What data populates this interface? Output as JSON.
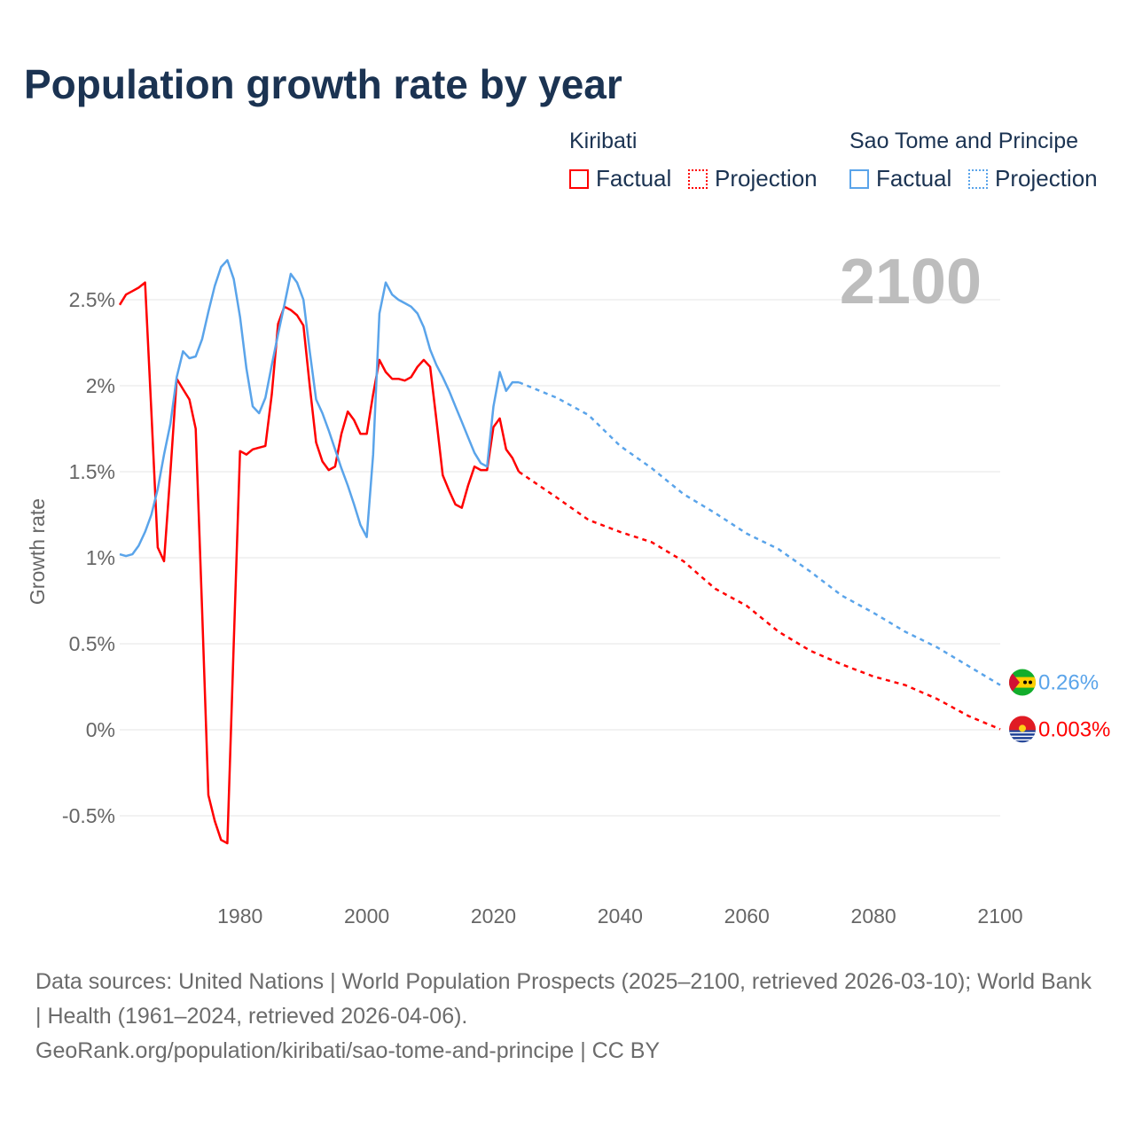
{
  "title": "Population growth rate by year",
  "legend": {
    "groups": [
      {
        "name": "Kiribati",
        "factual": "Factual",
        "projection": "Projection",
        "color": "#ff0000"
      },
      {
        "name": "Sao Tome and Principe",
        "factual": "Factual",
        "projection": "Projection",
        "color": "#5aa4ea"
      }
    ]
  },
  "year_label": "2100",
  "footer": {
    "sources": "Data sources: United Nations | World Population Prospects (2025–2100, retrieved 2026-03-10); World Bank | Health (1961–2024, retrieved 2026-04-06).",
    "link": "GeoRank.org/population/kiribati/sao-tome-and-principe | CC BY"
  },
  "chart_data": {
    "type": "line",
    "title": "Population growth rate by year",
    "xlabel": "",
    "ylabel": "Growth rate",
    "xlim": [
      1961,
      2100
    ],
    "ylim": [
      -0.85,
      2.85
    ],
    "grid": true,
    "legend_position": "top-right",
    "x_ticks": [
      1980,
      2000,
      2020,
      2040,
      2060,
      2080,
      2100
    ],
    "y_ticks": [
      -0.5,
      0,
      0.5,
      1,
      1.5,
      2,
      2.5
    ],
    "y_tick_labels": [
      "-0.5%",
      "0%",
      "0.5%",
      "1%",
      "1.5%",
      "2%",
      "2.5%"
    ],
    "series": [
      {
        "name": "Kiribati",
        "color": "#ff0000",
        "end_label": "0.003%",
        "factual": {
          "x": [
            1961,
            1962,
            1963,
            1964,
            1965,
            1966,
            1967,
            1968,
            1969,
            1970,
            1971,
            1972,
            1973,
            1974,
            1975,
            1976,
            1977,
            1978,
            1979,
            1980,
            1981,
            1982,
            1983,
            1984,
            1985,
            1986,
            1987,
            1988,
            1989,
            1990,
            1991,
            1992,
            1993,
            1994,
            1995,
            1996,
            1997,
            1998,
            1999,
            2000,
            2001,
            2002,
            2003,
            2004,
            2005,
            2006,
            2007,
            2008,
            2009,
            2010,
            2011,
            2012,
            2013,
            2014,
            2015,
            2016,
            2017,
            2018,
            2019,
            2020,
            2021,
            2022,
            2023,
            2024
          ],
          "y": [
            2.47,
            2.53,
            2.55,
            2.57,
            2.6,
            1.85,
            1.06,
            0.98,
            1.5,
            2.04,
            1.98,
            1.92,
            1.75,
            0.7,
            -0.38,
            -0.53,
            -0.64,
            -0.66,
            0.5,
            1.62,
            1.6,
            1.63,
            1.64,
            1.65,
            1.95,
            2.36,
            2.46,
            2.44,
            2.41,
            2.35,
            2.0,
            1.67,
            1.56,
            1.51,
            1.53,
            1.72,
            1.85,
            1.8,
            1.72,
            1.72,
            1.95,
            2.15,
            2.08,
            2.04,
            2.04,
            2.03,
            2.05,
            2.11,
            2.15,
            2.11,
            1.8,
            1.48,
            1.39,
            1.31,
            1.29,
            1.42,
            1.53,
            1.51,
            1.51,
            1.76,
            1.81,
            1.63,
            1.58,
            1.5
          ]
        },
        "projection": {
          "x": [
            2024,
            2030,
            2035,
            2040,
            2045,
            2050,
            2055,
            2060,
            2065,
            2070,
            2075,
            2080,
            2085,
            2090,
            2095,
            2100
          ],
          "y": [
            1.5,
            1.35,
            1.22,
            1.15,
            1.09,
            0.98,
            0.82,
            0.72,
            0.57,
            0.46,
            0.38,
            0.31,
            0.26,
            0.18,
            0.08,
            0.003
          ]
        }
      },
      {
        "name": "Sao Tome and Principe",
        "color": "#5aa4ea",
        "end_label": "0.26%",
        "factual": {
          "x": [
            1961,
            1962,
            1963,
            1964,
            1965,
            1966,
            1967,
            1968,
            1969,
            1970,
            1971,
            1972,
            1973,
            1974,
            1975,
            1976,
            1977,
            1978,
            1979,
            1980,
            1981,
            1982,
            1983,
            1984,
            1985,
            1986,
            1987,
            1988,
            1989,
            1990,
            1991,
            1992,
            1993,
            1994,
            1995,
            1996,
            1997,
            1998,
            1999,
            2000,
            2001,
            2002,
            2003,
            2004,
            2005,
            2006,
            2007,
            2008,
            2009,
            2010,
            2011,
            2012,
            2013,
            2014,
            2015,
            2016,
            2017,
            2018,
            2019,
            2020,
            2021,
            2022,
            2023,
            2024
          ],
          "y": [
            1.02,
            1.01,
            1.02,
            1.07,
            1.15,
            1.25,
            1.4,
            1.6,
            1.78,
            2.05,
            2.2,
            2.16,
            2.17,
            2.27,
            2.43,
            2.58,
            2.69,
            2.73,
            2.62,
            2.4,
            2.1,
            1.88,
            1.84,
            1.93,
            2.12,
            2.3,
            2.47,
            2.65,
            2.6,
            2.5,
            2.2,
            1.92,
            1.84,
            1.74,
            1.63,
            1.52,
            1.42,
            1.31,
            1.19,
            1.12,
            1.6,
            2.42,
            2.6,
            2.53,
            2.5,
            2.48,
            2.46,
            2.42,
            2.34,
            2.21,
            2.12,
            2.05,
            1.97,
            1.88,
            1.79,
            1.7,
            1.61,
            1.55,
            1.53,
            1.88,
            2.08,
            1.97,
            2.02,
            2.02
          ]
        },
        "projection": {
          "x": [
            2024,
            2030,
            2035,
            2040,
            2045,
            2050,
            2055,
            2060,
            2065,
            2070,
            2075,
            2080,
            2085,
            2090,
            2095,
            2100
          ],
          "y": [
            2.02,
            1.93,
            1.83,
            1.65,
            1.52,
            1.37,
            1.26,
            1.14,
            1.05,
            0.92,
            0.78,
            0.68,
            0.57,
            0.48,
            0.37,
            0.26
          ]
        }
      }
    ]
  }
}
